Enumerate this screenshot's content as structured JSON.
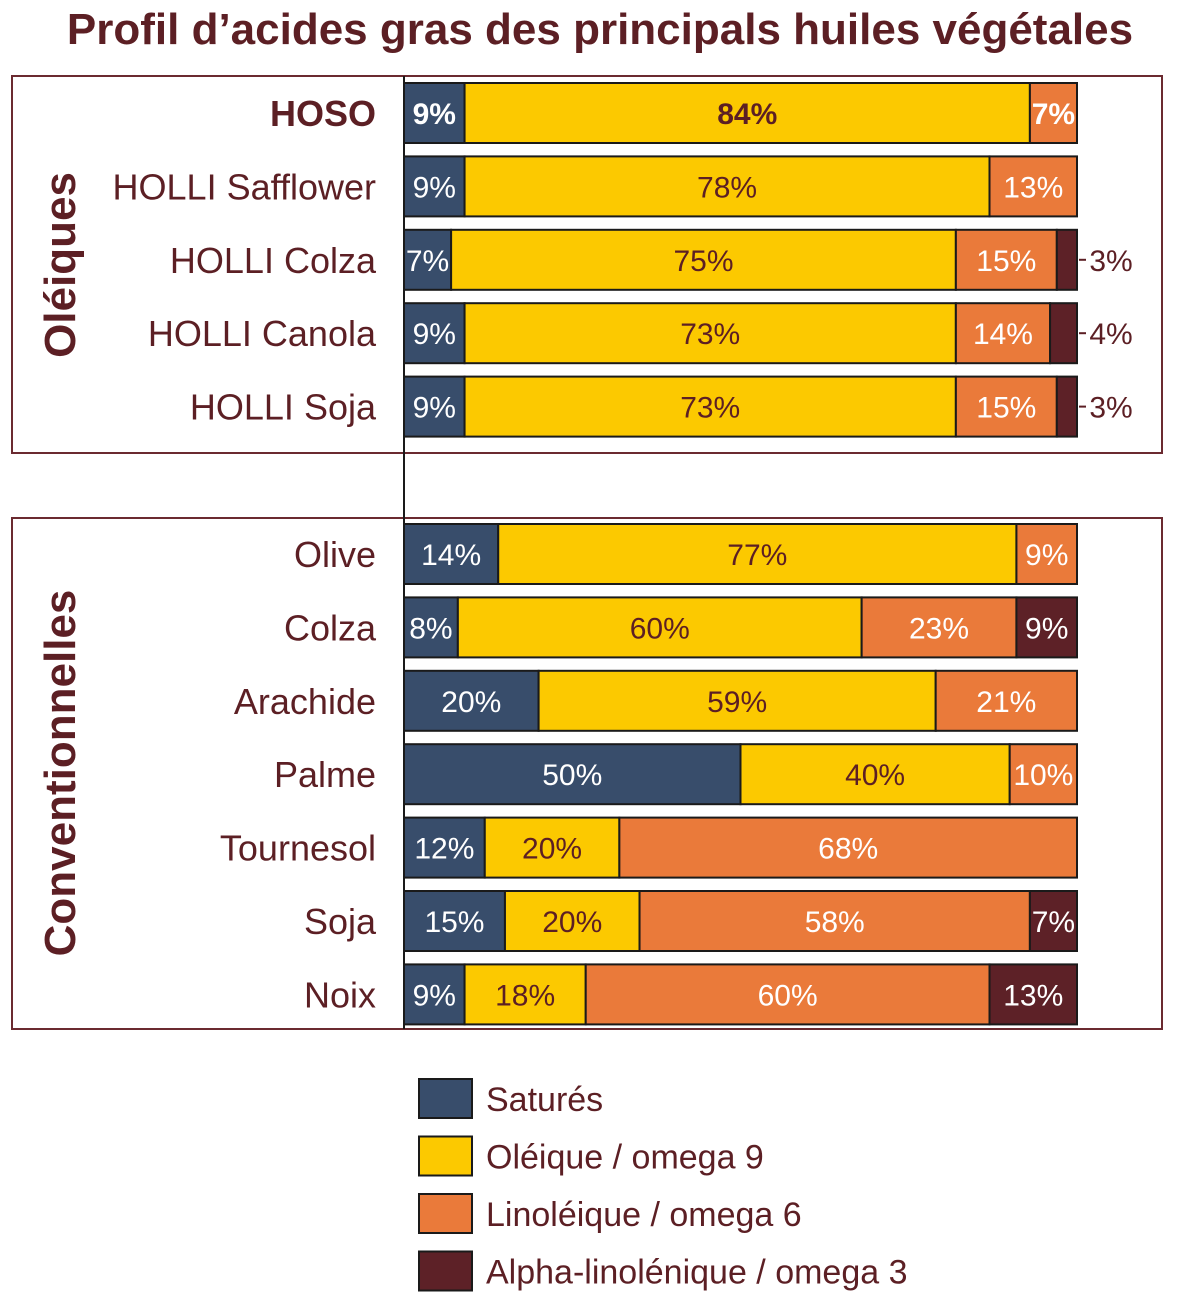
{
  "title": "Profil d’acides gras des principals huiles végétales",
  "colors": {
    "text": "#5c1f24",
    "frame": "#6b2a30",
    "Saturés": "#384d6b",
    "Oléique / omega 9": "#fcc900",
    "Linoléique / omega 6": "#ea7a3a",
    "Alpha-linolénique / omega 3": "#5d2127"
  },
  "chart_data": {
    "type": "bar",
    "orientation": "horizontal",
    "stacked": true,
    "xlim": [
      0,
      100
    ],
    "unit": "%",
    "series_names": [
      "Saturés",
      "Oléique / omega 9",
      "Linoléique / omega 6",
      "Alpha-linolénique / omega 3"
    ],
    "groups": [
      {
        "label": "Oléiques",
        "rows": [
          {
            "name": "HOSO",
            "bold": true,
            "values": [
              9,
              84,
              7,
              0
            ]
          },
          {
            "name": "HOLLI Safflower",
            "values": [
              9,
              78,
              13,
              0
            ]
          },
          {
            "name": "HOLLI Colza",
            "values": [
              7,
              75,
              15,
              3
            ]
          },
          {
            "name": "HOLLI Canola",
            "values": [
              9,
              73,
              14,
              4
            ]
          },
          {
            "name": "HOLLI Soja",
            "values": [
              9,
              73,
              15,
              3
            ]
          }
        ]
      },
      {
        "label": "Conventionnelles",
        "rows": [
          {
            "name": "Olive",
            "values": [
              14,
              77,
              9,
              0
            ]
          },
          {
            "name": "Colza",
            "values": [
              8,
              60,
              23,
              9
            ]
          },
          {
            "name": "Arachide",
            "values": [
              20,
              59,
              21,
              0
            ]
          },
          {
            "name": "Palme",
            "values": [
              50,
              40,
              10,
              0
            ]
          },
          {
            "name": "Tournesol",
            "values": [
              12,
              20,
              68,
              0
            ]
          },
          {
            "name": "Soja",
            "values": [
              15,
              20,
              58,
              7
            ]
          },
          {
            "name": "Noix",
            "values": [
              9,
              18,
              60,
              13
            ]
          }
        ]
      }
    ],
    "legend": {
      "placement": "bottom",
      "entries": [
        "Saturés",
        "Oléique / omega 9",
        "Linoléique / omega 6",
        "Alpha-linolénique / omega 3"
      ]
    }
  }
}
